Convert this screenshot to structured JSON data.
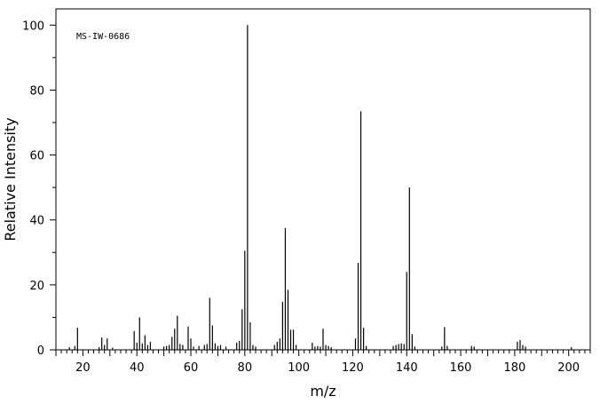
{
  "chart_data": {
    "type": "bar",
    "annotation": "MS-IW-0686",
    "xlabel": "m/z",
    "ylabel": "Relative Intensity",
    "xlim": [
      10,
      208
    ],
    "ylim": [
      0,
      105
    ],
    "x_ticks": [
      20,
      40,
      60,
      80,
      100,
      120,
      140,
      160,
      180,
      200
    ],
    "y_ticks": [
      0,
      20,
      40,
      60,
      80,
      100
    ],
    "x": [
      15,
      17,
      18,
      26,
      27,
      28,
      29,
      31,
      39,
      40,
      41,
      42,
      43,
      44,
      45,
      50,
      51,
      52,
      53,
      54,
      55,
      56,
      57,
      59,
      60,
      61,
      63,
      65,
      66,
      67,
      68,
      69,
      70,
      71,
      73,
      77,
      78,
      79,
      80,
      81,
      82,
      83,
      84,
      91,
      92,
      93,
      94,
      95,
      96,
      97,
      98,
      99,
      105,
      106,
      107,
      108,
      109,
      110,
      111,
      112,
      121,
      122,
      123,
      124,
      125,
      135,
      136,
      137,
      138,
      139,
      140,
      141,
      142,
      143,
      153,
      154,
      155,
      164,
      165,
      181,
      182,
      183,
      184,
      201
    ],
    "values": [
      0.8,
      1.2,
      6.8,
      0.8,
      3.8,
      1.5,
      3.5,
      0.7,
      5.8,
      2.2,
      10.0,
      2.0,
      4.5,
      1.5,
      2.5,
      1.0,
      1.2,
      1.5,
      4.0,
      6.5,
      10.5,
      1.8,
      1.5,
      7.2,
      3.5,
      1.0,
      1.2,
      1.5,
      1.8,
      16.0,
      7.5,
      2.0,
      1.2,
      1.5,
      1.0,
      2.2,
      2.8,
      12.5,
      30.5,
      100,
      8.5,
      1.5,
      1.0,
      1.5,
      2.5,
      3.5,
      14.8,
      37.5,
      18.5,
      6.2,
      6.2,
      1.5,
      2.2,
      1.0,
      1.2,
      1.0,
      6.5,
      1.5,
      1.2,
      0.8,
      3.5,
      26.8,
      73.5,
      6.8,
      1.2,
      1.2,
      1.5,
      1.8,
      2.0,
      1.8,
      24.0,
      50.0,
      4.8,
      1.0,
      1.0,
      7.0,
      1.2,
      1.2,
      1.0,
      2.5,
      3.0,
      1.5,
      1.0,
      0.8
    ]
  }
}
